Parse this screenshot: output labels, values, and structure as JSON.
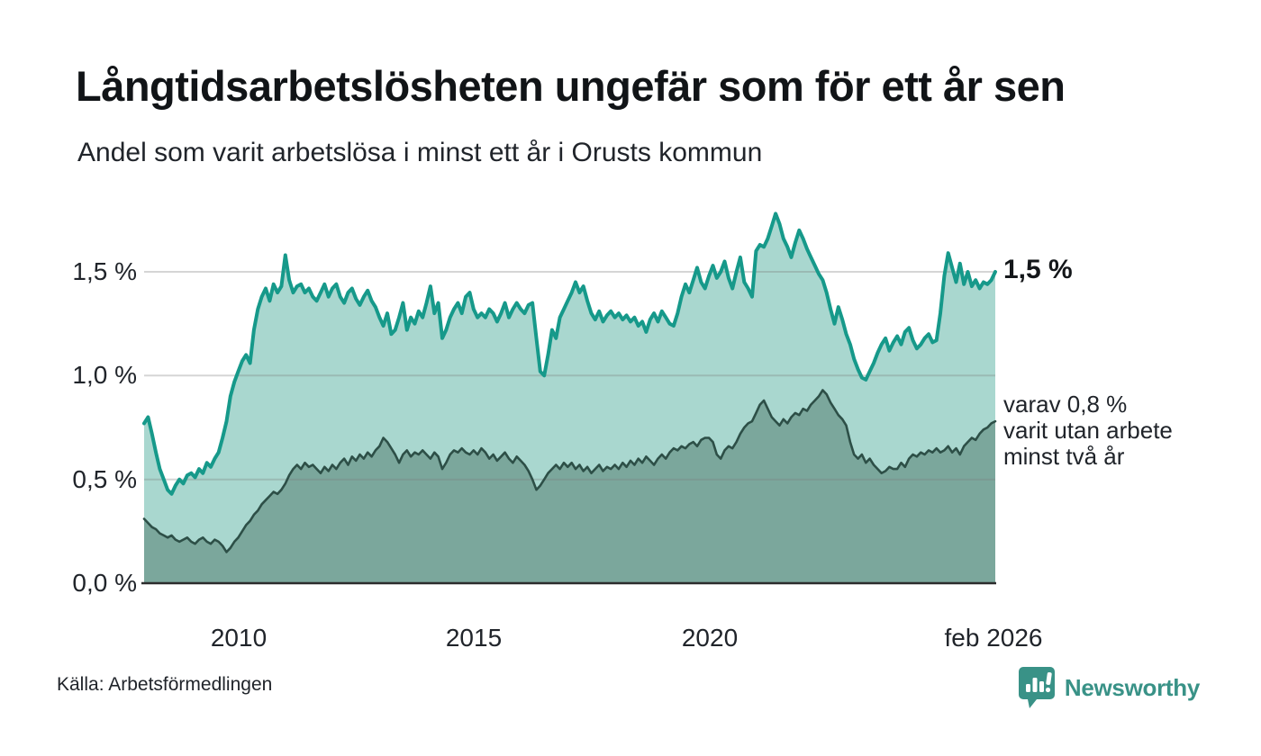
{
  "header": {
    "title": "Långtidsarbetslösheten ungefär som för ett år sen",
    "subtitle": "Andel som varit arbetslösa i minst ett år i Orusts kommun"
  },
  "chart_data": {
    "type": "area",
    "title": "Långtidsarbetslösheten ungefär som för ett år sen",
    "subtitle": "Andel som varit arbetslösa i minst ett år i Orusts kommun",
    "unit": "%",
    "x_start": "2008-01",
    "x_end": "2026-02",
    "x_frequency": "monthly",
    "ylim": [
      0,
      1.9
    ],
    "grid": "horizontal",
    "xticks": [
      "2010",
      "2015",
      "2020",
      "feb 2026"
    ],
    "yticks": [
      {
        "label": "1,5 %",
        "value": 1.5
      },
      {
        "label": "1,0 %",
        "value": 1.0
      },
      {
        "label": "0,5 %",
        "value": 0.5
      },
      {
        "label": "0,0 %",
        "value": 0.0
      }
    ],
    "series": [
      {
        "name": "arbetslösa minst ett år",
        "line_color": "#16998a",
        "fill_color": "#a9d7cf",
        "end_value_label": "1,5 %",
        "values_pct": [
          0.77,
          0.8,
          0.72,
          0.63,
          0.55,
          0.5,
          0.45,
          0.43,
          0.47,
          0.5,
          0.48,
          0.52,
          0.53,
          0.51,
          0.55,
          0.53,
          0.58,
          0.56,
          0.6,
          0.63,
          0.7,
          0.78,
          0.9,
          0.97,
          1.02,
          1.07,
          1.1,
          1.06,
          1.22,
          1.32,
          1.38,
          1.42,
          1.36,
          1.44,
          1.4,
          1.43,
          1.58,
          1.46,
          1.4,
          1.43,
          1.44,
          1.4,
          1.42,
          1.38,
          1.36,
          1.4,
          1.44,
          1.38,
          1.42,
          1.44,
          1.38,
          1.35,
          1.4,
          1.42,
          1.37,
          1.34,
          1.38,
          1.41,
          1.36,
          1.33,
          1.28,
          1.24,
          1.3,
          1.2,
          1.22,
          1.28,
          1.35,
          1.22,
          1.28,
          1.25,
          1.31,
          1.28,
          1.35,
          1.43,
          1.3,
          1.35,
          1.18,
          1.22,
          1.28,
          1.32,
          1.35,
          1.3,
          1.38,
          1.4,
          1.32,
          1.28,
          1.3,
          1.28,
          1.32,
          1.3,
          1.26,
          1.3,
          1.35,
          1.28,
          1.32,
          1.35,
          1.32,
          1.3,
          1.34,
          1.35,
          1.18,
          1.02,
          1.0,
          1.1,
          1.22,
          1.18,
          1.28,
          1.32,
          1.36,
          1.4,
          1.45,
          1.4,
          1.43,
          1.36,
          1.3,
          1.27,
          1.31,
          1.26,
          1.29,
          1.31,
          1.28,
          1.3,
          1.27,
          1.29,
          1.26,
          1.28,
          1.24,
          1.26,
          1.21,
          1.27,
          1.3,
          1.26,
          1.31,
          1.28,
          1.25,
          1.24,
          1.3,
          1.38,
          1.44,
          1.4,
          1.46,
          1.52,
          1.45,
          1.42,
          1.48,
          1.53,
          1.47,
          1.5,
          1.55,
          1.47,
          1.42,
          1.5,
          1.57,
          1.45,
          1.42,
          1.38,
          1.6,
          1.63,
          1.62,
          1.66,
          1.72,
          1.78,
          1.73,
          1.66,
          1.62,
          1.57,
          1.64,
          1.7,
          1.66,
          1.61,
          1.57,
          1.53,
          1.49,
          1.46,
          1.4,
          1.32,
          1.25,
          1.33,
          1.27,
          1.2,
          1.15,
          1.08,
          1.03,
          0.99,
          0.98,
          1.02,
          1.06,
          1.11,
          1.15,
          1.18,
          1.12,
          1.16,
          1.19,
          1.15,
          1.21,
          1.23,
          1.17,
          1.13,
          1.15,
          1.18,
          1.2,
          1.16,
          1.17,
          1.3,
          1.48,
          1.59,
          1.52,
          1.45,
          1.54,
          1.44,
          1.5,
          1.43,
          1.46,
          1.42,
          1.45,
          1.44,
          1.46,
          1.5
        ]
      },
      {
        "name": "varav arbetslösa minst två år",
        "line_color": "#2d4f47",
        "fill_color": "#7ba79c",
        "end_value_label": "0,8 %",
        "values_pct": [
          0.31,
          0.29,
          0.27,
          0.26,
          0.24,
          0.23,
          0.22,
          0.23,
          0.21,
          0.2,
          0.21,
          0.22,
          0.2,
          0.19,
          0.21,
          0.22,
          0.2,
          0.19,
          0.21,
          0.2,
          0.18,
          0.15,
          0.17,
          0.2,
          0.22,
          0.25,
          0.28,
          0.3,
          0.33,
          0.35,
          0.38,
          0.4,
          0.42,
          0.44,
          0.43,
          0.45,
          0.48,
          0.52,
          0.55,
          0.57,
          0.55,
          0.58,
          0.56,
          0.57,
          0.55,
          0.53,
          0.56,
          0.54,
          0.57,
          0.55,
          0.58,
          0.6,
          0.57,
          0.61,
          0.59,
          0.62,
          0.6,
          0.63,
          0.61,
          0.64,
          0.66,
          0.7,
          0.68,
          0.65,
          0.62,
          0.58,
          0.62,
          0.64,
          0.61,
          0.63,
          0.62,
          0.64,
          0.62,
          0.6,
          0.63,
          0.61,
          0.55,
          0.58,
          0.62,
          0.64,
          0.63,
          0.65,
          0.63,
          0.62,
          0.64,
          0.62,
          0.65,
          0.63,
          0.6,
          0.62,
          0.59,
          0.61,
          0.63,
          0.6,
          0.58,
          0.61,
          0.59,
          0.57,
          0.54,
          0.5,
          0.45,
          0.47,
          0.5,
          0.53,
          0.55,
          0.57,
          0.55,
          0.58,
          0.56,
          0.58,
          0.55,
          0.57,
          0.54,
          0.56,
          0.53,
          0.55,
          0.57,
          0.54,
          0.56,
          0.55,
          0.57,
          0.55,
          0.58,
          0.56,
          0.59,
          0.57,
          0.6,
          0.58,
          0.61,
          0.59,
          0.57,
          0.6,
          0.62,
          0.6,
          0.63,
          0.65,
          0.64,
          0.66,
          0.65,
          0.67,
          0.68,
          0.66,
          0.69,
          0.7,
          0.7,
          0.68,
          0.62,
          0.6,
          0.64,
          0.66,
          0.65,
          0.68,
          0.72,
          0.75,
          0.77,
          0.78,
          0.82,
          0.86,
          0.88,
          0.84,
          0.8,
          0.78,
          0.76,
          0.79,
          0.77,
          0.8,
          0.82,
          0.81,
          0.84,
          0.83,
          0.86,
          0.88,
          0.9,
          0.93,
          0.91,
          0.87,
          0.84,
          0.81,
          0.79,
          0.76,
          0.68,
          0.62,
          0.6,
          0.62,
          0.58,
          0.6,
          0.57,
          0.55,
          0.53,
          0.54,
          0.56,
          0.55,
          0.55,
          0.58,
          0.56,
          0.6,
          0.62,
          0.61,
          0.63,
          0.62,
          0.64,
          0.63,
          0.65,
          0.63,
          0.64,
          0.66,
          0.63,
          0.65,
          0.62,
          0.66,
          0.68,
          0.7,
          0.69,
          0.72,
          0.74,
          0.75,
          0.77,
          0.78
        ]
      }
    ],
    "end_labels": {
      "upper": "1,5 %",
      "annotation_lines": [
        "varav 0,8 %",
        "varit utan arbete",
        "minst två år"
      ]
    },
    "legend_position": "right-annotations"
  },
  "footer": {
    "source": "Källa: Arbetsförmedlingen",
    "brand": "Newsworthy"
  },
  "colors": {
    "accent_teal": "#16998a",
    "fill_light": "#a9d7cf",
    "fill_dark": "#7ba79c",
    "line_dark": "#2d4f47",
    "brand_teal": "#399287",
    "gridline": "#d9d9d9",
    "text": "#20242a"
  }
}
